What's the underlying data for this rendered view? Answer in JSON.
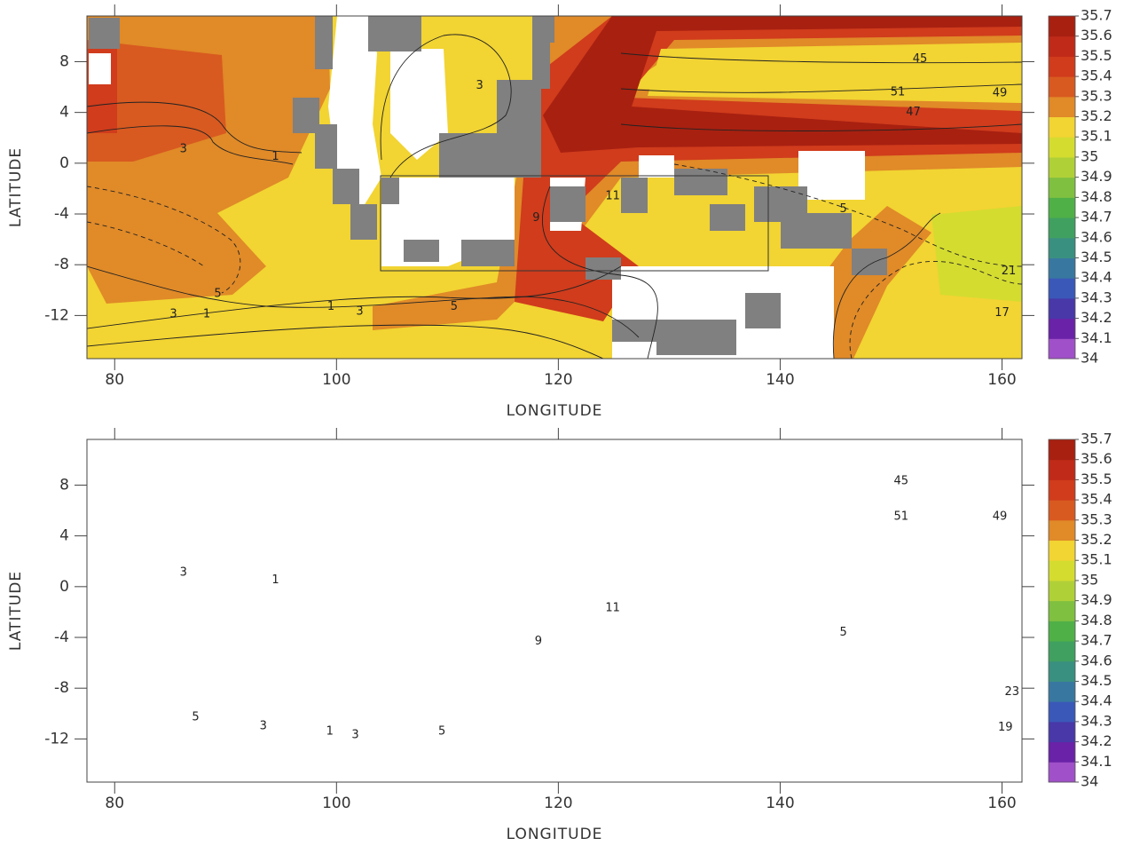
{
  "chart_data": [
    {
      "type": "contour_map",
      "xlabel": "LONGITUDE",
      "ylabel": "LATITUDE",
      "xlim": [
        77.5,
        161.8
      ],
      "ylim": [
        -15.4,
        11.6
      ],
      "xticks": [
        80,
        100,
        120,
        140,
        160
      ],
      "yticks": [
        8,
        4,
        0,
        -4,
        -8,
        -12
      ],
      "colorbar": {
        "levels": [
          34,
          34.1,
          34.2,
          34.3,
          34.4,
          34.5,
          34.6,
          34.7,
          34.8,
          34.9,
          35,
          35.1,
          35.2,
          35.3,
          35.4,
          35.5,
          35.6,
          35.7
        ],
        "colors": [
          "#a050c8",
          "#6a22a8",
          "#4838a8",
          "#3a58b8",
          "#3878a0",
          "#3a9080",
          "#40a060",
          "#50b048",
          "#80c040",
          "#b0d038",
          "#d4dc30",
          "#f2d432",
          "#e08a28",
          "#d85a20",
          "#d03c1c",
          "#c02a18",
          "#a82010"
        ]
      },
      "contour_labels": [
        {
          "lon": 86.2,
          "lat": 1.1,
          "value": 3
        },
        {
          "lon": 94.5,
          "lat": 0.5,
          "value": 1
        },
        {
          "lon": 112.9,
          "lat": 6.1,
          "value": 3
        },
        {
          "lon": 89.3,
          "lat": -10.3,
          "value": 5
        },
        {
          "lon": 85.3,
          "lat": -11.9,
          "value": 3
        },
        {
          "lon": 88.3,
          "lat": -11.9,
          "value": 1
        },
        {
          "lon": 99.5,
          "lat": -11.3,
          "value": 1
        },
        {
          "lon": 102.1,
          "lat": -11.7,
          "value": 3
        },
        {
          "lon": 110.6,
          "lat": -11.3,
          "value": 5
        },
        {
          "lon": 118,
          "lat": -4.3,
          "value": 9
        },
        {
          "lon": 124.9,
          "lat": -2.6,
          "value": 11
        },
        {
          "lon": 150.6,
          "lat": 5.6,
          "value": 51
        },
        {
          "lon": 159.8,
          "lat": 5.5,
          "value": 49
        },
        {
          "lon": 152.6,
          "lat": 8.2,
          "value": 45
        },
        {
          "lon": 152,
          "lat": 4,
          "value": 47
        },
        {
          "lon": 145.7,
          "lat": -3.6,
          "value": 5
        },
        {
          "lon": 160.6,
          "lat": -8.5,
          "value": 21
        },
        {
          "lon": 160,
          "lat": -11.8,
          "value": 17
        }
      ]
    },
    {
      "type": "contour_map",
      "xlabel": "LONGITUDE",
      "ylabel": "LATITUDE",
      "xlim": [
        77.5,
        161.8
      ],
      "ylim": [
        -15.4,
        11.6
      ],
      "xticks": [
        80,
        100,
        120,
        140,
        160
      ],
      "yticks": [
        8,
        4,
        0,
        -4,
        -8,
        -12
      ],
      "colorbar": {
        "levels": [
          34,
          34.1,
          34.2,
          34.3,
          34.4,
          34.5,
          34.6,
          34.7,
          34.8,
          34.9,
          35,
          35.1,
          35.2,
          35.3,
          35.4,
          35.5,
          35.6,
          35.7
        ],
        "colors": [
          "#a050c8",
          "#6a22a8",
          "#4838a8",
          "#3a58b8",
          "#3878a0",
          "#3a9080",
          "#40a060",
          "#50b048",
          "#80c040",
          "#b0d038",
          "#d4dc30",
          "#f2d432",
          "#e08a28",
          "#d85a20",
          "#d03c1c",
          "#c02a18",
          "#a82010"
        ]
      },
      "contour_labels": [
        {
          "lon": 86.2,
          "lat": 1.1,
          "value": 3
        },
        {
          "lon": 94.5,
          "lat": 0.5,
          "value": 1
        },
        {
          "lon": 87.3,
          "lat": -10.3,
          "value": 5
        },
        {
          "lon": 93.4,
          "lat": -11,
          "value": 3
        },
        {
          "lon": 99.4,
          "lat": -11.4,
          "value": 1
        },
        {
          "lon": 101.7,
          "lat": -11.7,
          "value": 3
        },
        {
          "lon": 109.5,
          "lat": -11.4,
          "value": 5
        },
        {
          "lon": 118.2,
          "lat": -4.3,
          "value": 9
        },
        {
          "lon": 124.9,
          "lat": -1.7,
          "value": 11
        },
        {
          "lon": 150.9,
          "lat": 8.3,
          "value": 45
        },
        {
          "lon": 150.9,
          "lat": 5.5,
          "value": 51
        },
        {
          "lon": 159.8,
          "lat": 5.5,
          "value": 49
        },
        {
          "lon": 145.7,
          "lat": -3.6,
          "value": 5
        },
        {
          "lon": 160.9,
          "lat": -8.3,
          "value": 23
        },
        {
          "lon": 160.3,
          "lat": -11.1,
          "value": 19
        }
      ]
    }
  ]
}
